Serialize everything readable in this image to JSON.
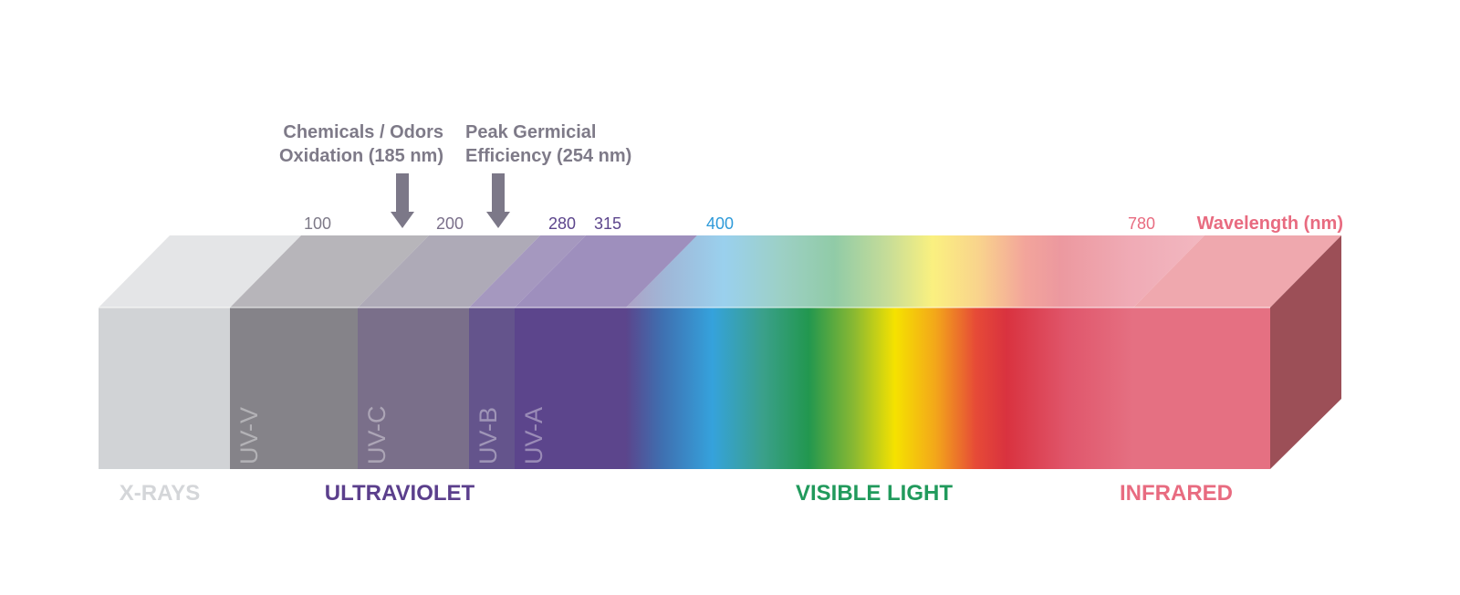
{
  "colors": {
    "xrays": "#d1d3d6",
    "xrays_label": "#d4d6d9",
    "uvv": "#858389",
    "uvc": "#7a6f8a",
    "uvb": "#64548c",
    "uva": "#5c458c",
    "ultraviolet_label": "#5b3f8c",
    "visible_label": "#219a5c",
    "infrared": "#e57082",
    "infrared_label": "#e86b80",
    "infrared_side": "#9c4f57",
    "callout": "#7e7a88",
    "arrow": "#7c7888",
    "tick_gray": "#7e7a88",
    "tick_purple": "#5c458c",
    "tick_blue": "#2e9ad9",
    "tick_pink": "#e86b80"
  },
  "callouts": [
    {
      "lines": [
        "Chemicals / Odors",
        "Oxidation (185 nm)"
      ],
      "icon": "arrow-down-icon"
    },
    {
      "lines": [
        "Peak Germicial",
        "Efficiency (254 nm)"
      ],
      "icon": "arrow-down-icon"
    }
  ],
  "ticks": [
    "100",
    "200",
    "280",
    "315",
    "400",
    "780"
  ],
  "axis_title": "Wavelength (nm)",
  "sub_bands": [
    "UV-V",
    "UV-C",
    "UV-B",
    "UV-A"
  ],
  "bands": {
    "xrays": "X-RAYS",
    "ultraviolet": "ULTRAVIOLET",
    "visible": "VISIBLE LIGHT",
    "infrared": "INFRARED"
  },
  "visible_gradient": [
    {
      "offset": 0.0,
      "color": "#5b458c"
    },
    {
      "offset": 0.07,
      "color": "#3f6fb0"
    },
    {
      "offset": 0.17,
      "color": "#35a2dc"
    },
    {
      "offset": 0.27,
      "color": "#3aa08a"
    },
    {
      "offset": 0.36,
      "color": "#22974f"
    },
    {
      "offset": 0.45,
      "color": "#8ab932"
    },
    {
      "offset": 0.53,
      "color": "#f5e200"
    },
    {
      "offset": 0.61,
      "color": "#f3a71a"
    },
    {
      "offset": 0.69,
      "color": "#e64a37"
    },
    {
      "offset": 0.75,
      "color": "#d9323f"
    },
    {
      "offset": 0.87,
      "color": "#e0566b"
    },
    {
      "offset": 1.0,
      "color": "#e57082"
    }
  ]
}
